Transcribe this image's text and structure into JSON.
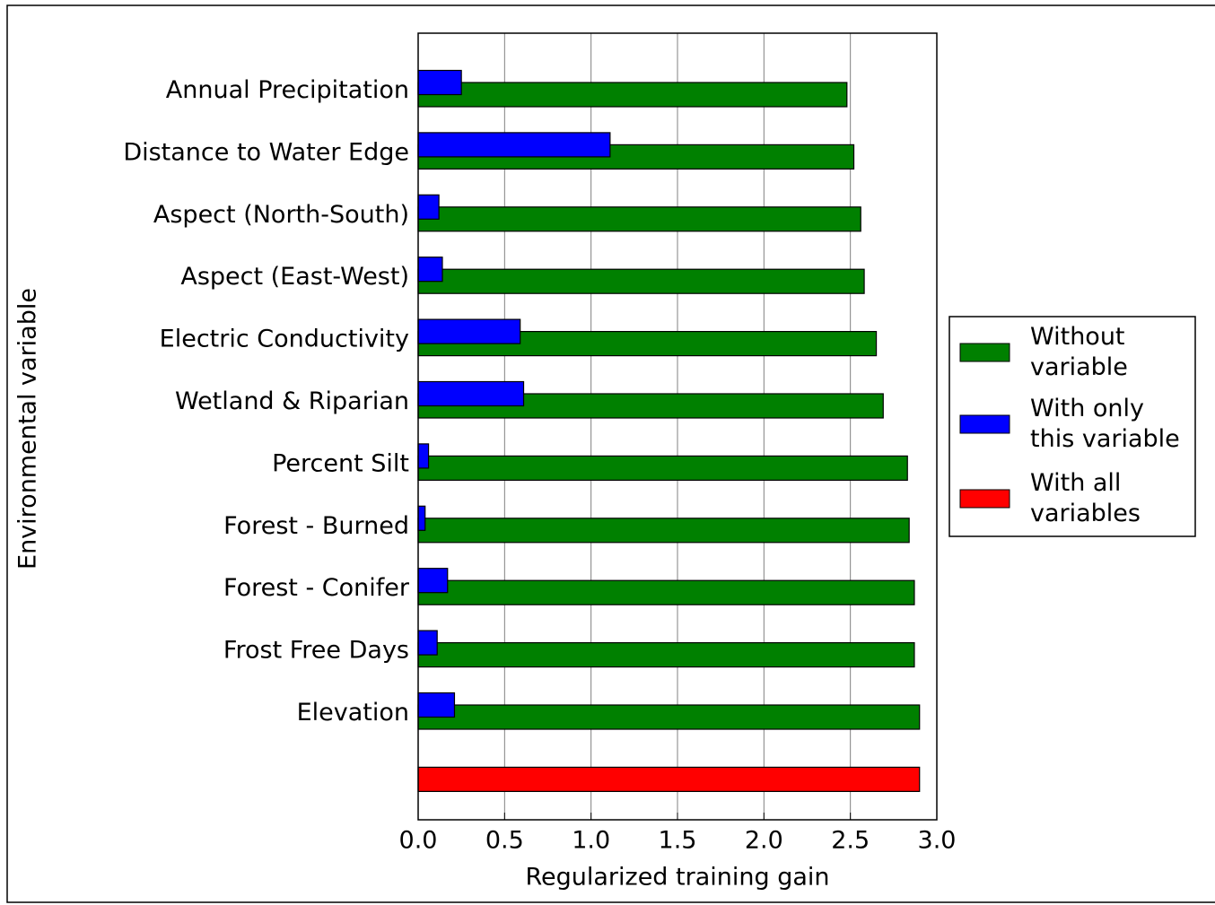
{
  "chart_data": {
    "type": "barh",
    "xlabel": "Regularized training gain",
    "ylabel": "Environmental variable",
    "categories": [
      "Annual Precipitation",
      "Distance to Water Edge",
      "Aspect (North-South)",
      "Aspect (East-West)",
      "Electric Conductivity",
      "Wetland & Riparian",
      "Percent Silt",
      "Forest - Burned",
      "Forest - Conifer",
      "Frost Free Days",
      "Elevation",
      null
    ],
    "series": [
      {
        "name": "Without variable",
        "color": "#008000",
        "values": [
          2.48,
          2.52,
          2.56,
          2.58,
          2.65,
          2.69,
          2.83,
          2.84,
          2.87,
          2.87,
          2.9,
          null
        ]
      },
      {
        "name": "With only this variable",
        "color": "#0000ff",
        "values": [
          0.25,
          1.11,
          0.12,
          0.14,
          0.59,
          0.61,
          0.06,
          0.04,
          0.17,
          0.11,
          0.21,
          null
        ]
      },
      {
        "name": "With all variables",
        "color": "#ff0000",
        "values": [
          null,
          null,
          null,
          null,
          null,
          null,
          null,
          null,
          null,
          null,
          null,
          2.9
        ]
      }
    ],
    "xlim": [
      0,
      3
    ],
    "xticks": [
      {
        "value": 0,
        "label": "0.0"
      },
      0.5,
      {
        "value": 1,
        "label": "1.0"
      },
      1.5,
      {
        "value": 2,
        "label": "2.0"
      },
      2.5,
      {
        "value": 3,
        "label": "3.0"
      }
    ],
    "grid": true,
    "legend": "right"
  }
}
